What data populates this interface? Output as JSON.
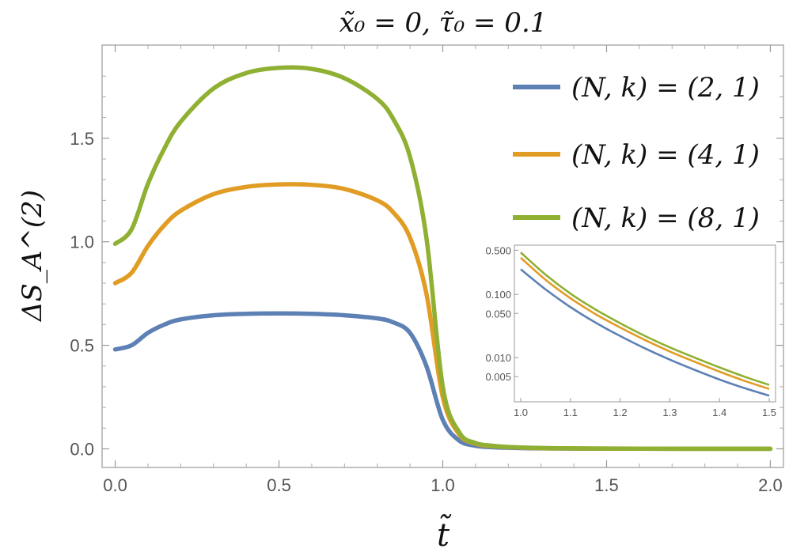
{
  "chart_data": {
    "type": "line",
    "title": "x̃₀ = 0,  τ̃₀ = 0.1",
    "xlabel": "t̃",
    "ylabel": "ΔS_A^(2)",
    "xlim": [
      -0.04,
      2.04
    ],
    "ylim": [
      -0.09,
      1.95
    ],
    "x_ticks": [
      0.0,
      0.5,
      1.0,
      1.5,
      2.0
    ],
    "x_tick_labels": [
      "0.0",
      "0.5",
      "1.0",
      "1.5",
      "2.0"
    ],
    "y_ticks": [
      0.0,
      0.5,
      1.0,
      1.5
    ],
    "y_tick_labels": [
      "0.0",
      "0.5",
      "1.0",
      "1.5"
    ],
    "grid": false,
    "legend_position": "top-right",
    "x": [
      0.0,
      0.05,
      0.1,
      0.15,
      0.2,
      0.3,
      0.4,
      0.5,
      0.6,
      0.7,
      0.8,
      0.85,
      0.9,
      0.95,
      1.0,
      1.05,
      1.1,
      1.15,
      1.2,
      1.3,
      1.4,
      1.5,
      1.6,
      1.8,
      2.0
    ],
    "series": [
      {
        "name": "(N, k) = (2, 1)",
        "color": "#5E81B5",
        "values": [
          0.48,
          0.5,
          0.56,
          0.6,
          0.625,
          0.645,
          0.652,
          0.654,
          0.652,
          0.645,
          0.63,
          0.61,
          0.56,
          0.4,
          0.14,
          0.04,
          0.015,
          0.008,
          0.005,
          0.002,
          0.0012,
          0.0008,
          0.0005,
          0.0002,
          0.0001
        ]
      },
      {
        "name": "(N, k) = (4, 1)",
        "color": "#E19C24",
        "values": [
          0.8,
          0.85,
          0.98,
          1.08,
          1.15,
          1.23,
          1.265,
          1.277,
          1.275,
          1.255,
          1.2,
          1.14,
          1.02,
          0.75,
          0.25,
          0.07,
          0.025,
          0.013,
          0.008,
          0.003,
          0.0018,
          0.0011,
          0.0007,
          0.0003,
          0.0001
        ]
      },
      {
        "name": "(N, k) = (8, 1)",
        "color": "#8FB032",
        "values": [
          0.99,
          1.06,
          1.28,
          1.45,
          1.58,
          1.74,
          1.815,
          1.84,
          1.835,
          1.79,
          1.69,
          1.59,
          1.41,
          1.02,
          0.3,
          0.08,
          0.028,
          0.015,
          0.009,
          0.004,
          0.0022,
          0.0013,
          0.0008,
          0.0003,
          0.0001
        ]
      }
    ],
    "inset": {
      "type": "line",
      "scale_y": "log",
      "xlim": [
        1.0,
        1.5
      ],
      "ylim": [
        0.002,
        0.6
      ],
      "x_ticks": [
        1.0,
        1.1,
        1.2,
        1.3,
        1.4,
        1.5
      ],
      "x_tick_labels": [
        "1.0",
        "1.1",
        "1.2",
        "1.3",
        "1.4",
        "1.5"
      ],
      "y_ticks": [
        0.5,
        0.1,
        0.05,
        0.01,
        0.005
      ],
      "y_tick_labels": [
        "0.500",
        "0.100",
        "0.050",
        "0.010",
        "0.005"
      ],
      "x": [
        1.0,
        1.05,
        1.1,
        1.15,
        1.2,
        1.25,
        1.3,
        1.35,
        1.4,
        1.45,
        1.5
      ],
      "series": [
        {
          "color": "#5E81B5",
          "values": [
            0.25,
            0.12,
            0.063,
            0.036,
            0.022,
            0.014,
            0.0093,
            0.0064,
            0.0045,
            0.0033,
            0.0025
          ]
        },
        {
          "color": "#E19C24",
          "values": [
            0.38,
            0.17,
            0.087,
            0.049,
            0.03,
            0.019,
            0.0125,
            0.0086,
            0.006,
            0.0043,
            0.0032
          ]
        },
        {
          "color": "#8FB032",
          "values": [
            0.46,
            0.205,
            0.103,
            0.058,
            0.035,
            0.022,
            0.0145,
            0.01,
            0.007,
            0.005,
            0.0037
          ]
        }
      ]
    }
  }
}
